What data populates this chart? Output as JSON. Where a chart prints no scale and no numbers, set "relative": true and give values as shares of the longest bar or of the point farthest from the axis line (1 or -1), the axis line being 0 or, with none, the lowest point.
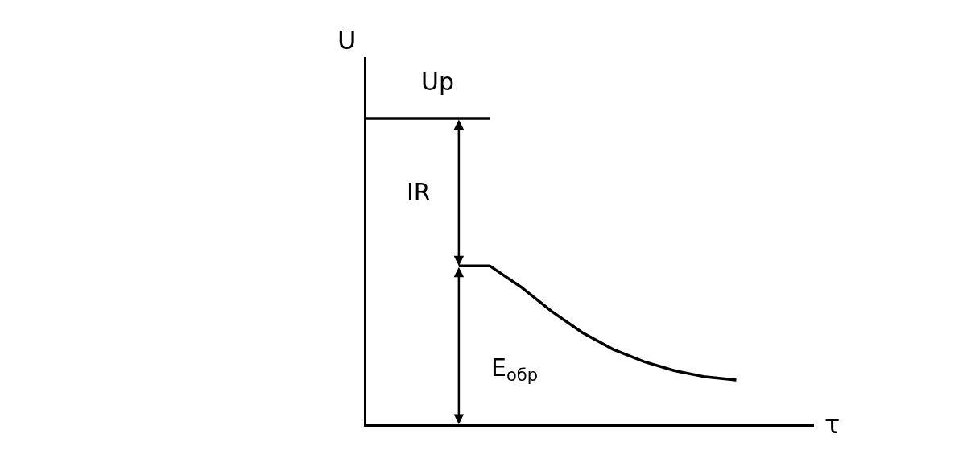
{
  "chart_data": {
    "type": "line",
    "relative": true,
    "xlabel": "τ",
    "ylabel": "U",
    "categories": [
      null,
      null,
      null,
      null,
      null,
      null,
      null,
      null,
      null,
      null,
      null,
      null,
      null
    ],
    "ylim": [
      0,
      1.2
    ],
    "legend": false,
    "marker": "none",
    "line_style": "solid",
    "series": [
      {
        "color": "#000000",
        "values": [
          1,
          1,
          1,
          1,
          1,
          null,
          null,
          null,
          null,
          null,
          null,
          null,
          null
        ]
      },
      {
        "color": "#000000",
        "values": [
          null,
          null,
          null,
          0.518,
          0.518,
          0.45,
          0.37,
          0.3,
          0.245,
          0.205,
          0.175,
          0.155,
          0.145
        ]
      }
    ],
    "annotations": [
      "Uр",
      "IR",
      "E$_{обр}$"
    ]
  }
}
